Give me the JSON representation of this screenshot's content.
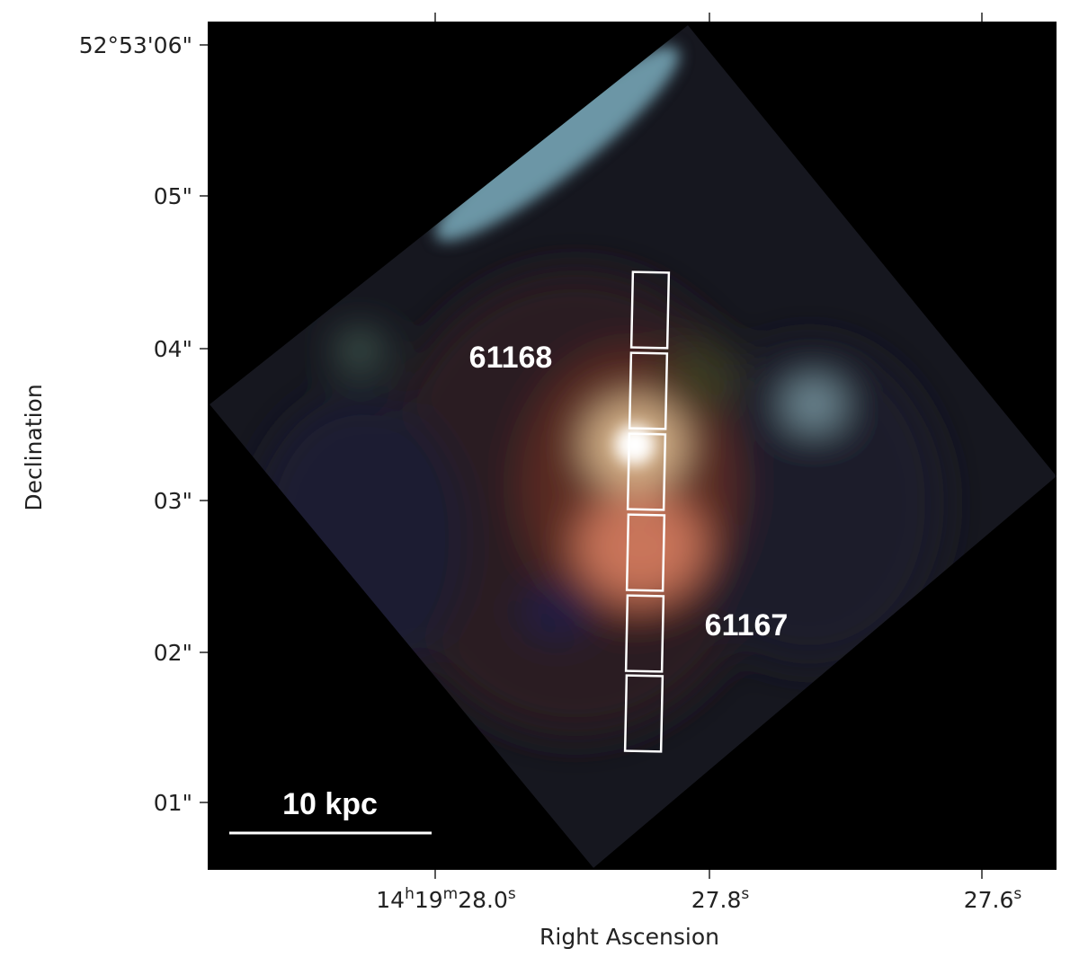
{
  "figure": {
    "x_axis": {
      "label": "Right Ascension",
      "ticks": [
        "14h19m28.0s",
        "27.8s",
        "27.6s"
      ]
    },
    "y_axis": {
      "label": "Declination",
      "ticks": [
        "52°53'06\"",
        "05\"",
        "04\"",
        "03\"",
        "02\"",
        "01\""
      ]
    },
    "annotations": {
      "sources": [
        "61168",
        "61167"
      ],
      "scale_bar": "10 kpc"
    }
  }
}
